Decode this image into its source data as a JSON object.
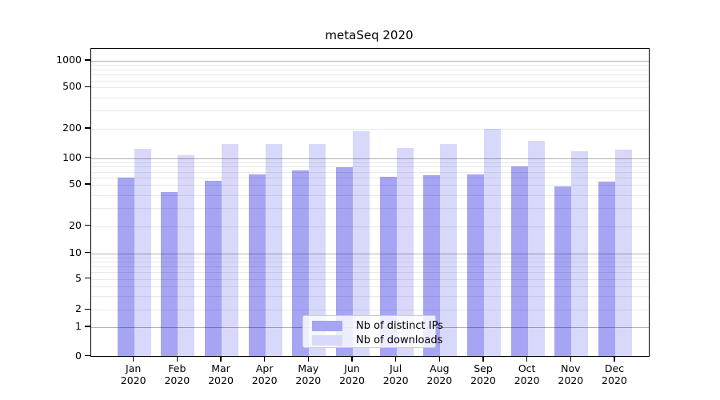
{
  "title": "metaSeq 2020",
  "chart_data": {
    "type": "bar",
    "title": "metaSeq 2020",
    "xlabel": "",
    "ylabel": "",
    "yscale": "log-like (compressed near zero, 0 baseline shown)",
    "yticks": [
      "1000",
      "500",
      "200",
      "100",
      "50",
      "20",
      "10",
      "5",
      "2",
      "1",
      "0"
    ],
    "ylim": [
      0,
      1300
    ],
    "grid": "horizontal log minor+major gridlines",
    "legend_position": "bottom-center inside plot",
    "categories": [
      {
        "label": "Jan",
        "sublabel": "2020"
      },
      {
        "label": "Feb",
        "sublabel": "2020"
      },
      {
        "label": "Mar",
        "sublabel": "2020"
      },
      {
        "label": "Apr",
        "sublabel": "2020"
      },
      {
        "label": "May",
        "sublabel": "2020"
      },
      {
        "label": "Jun",
        "sublabel": "2020"
      },
      {
        "label": "Jul",
        "sublabel": "2020"
      },
      {
        "label": "Aug",
        "sublabel": "2020"
      },
      {
        "label": "Sep",
        "sublabel": "2020"
      },
      {
        "label": "Oct",
        "sublabel": "2020"
      },
      {
        "label": "Nov",
        "sublabel": "2020"
      },
      {
        "label": "Dec",
        "sublabel": "2020"
      }
    ],
    "series": [
      {
        "name": "Nb of distinct IPs",
        "color": "#a5a5f3",
        "values": [
          60,
          43,
          56,
          66,
          72,
          79,
          62,
          64,
          66,
          80,
          48,
          54
        ]
      },
      {
        "name": "Nb of downloads",
        "color": "#d8d8fa",
        "values": [
          125,
          107,
          140,
          140,
          140,
          190,
          128,
          140,
          201,
          152,
          117,
          123
        ]
      }
    ]
  }
}
